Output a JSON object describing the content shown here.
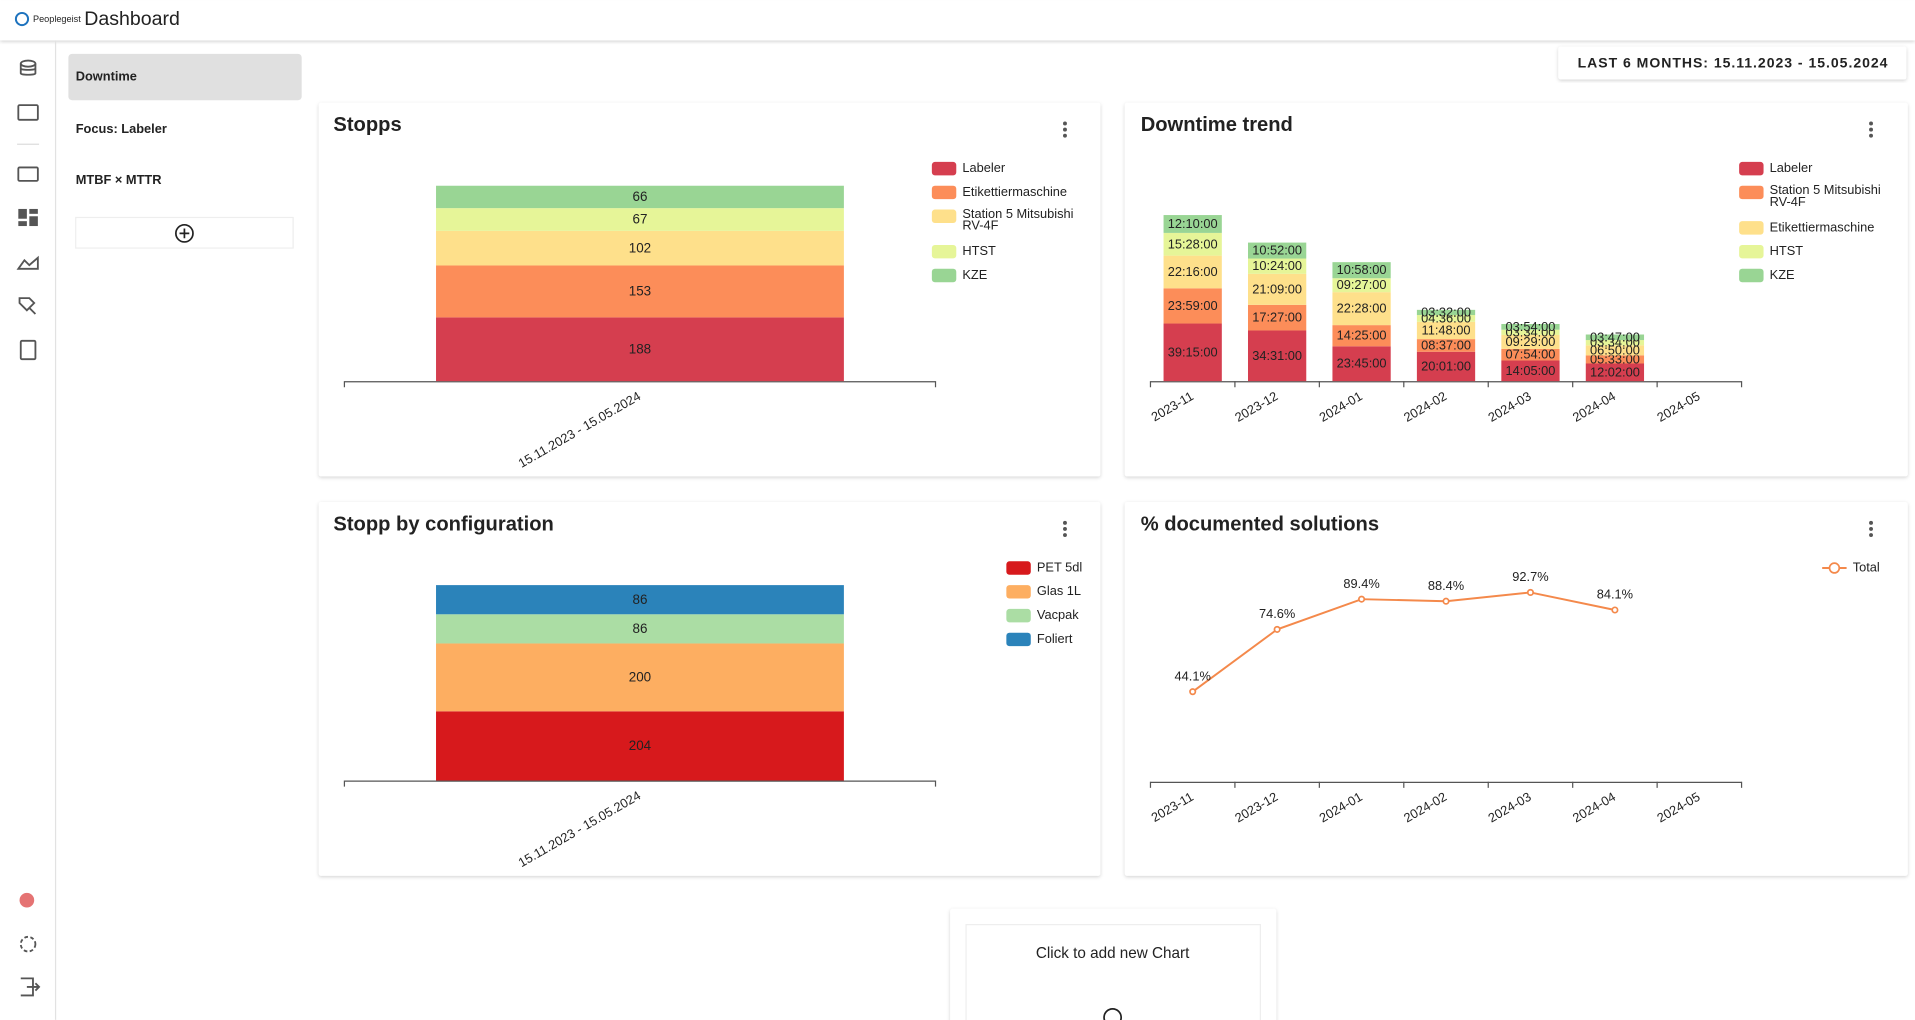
{
  "header": {
    "logo": "Peoplegeist",
    "title": "Dashboard"
  },
  "tabs": [
    "Downtime",
    "Focus: Labeler",
    "MTBF × MTTR"
  ],
  "date_range": "LAST 6 MONTHS: 15.11.2023 - 15.05.2024",
  "add_chart": "Click to add new Chart",
  "chart_data": [
    {
      "type": "bar",
      "stacked": true,
      "title": "Stopps",
      "categories": [
        "15.11.2023 - 15.05.2024"
      ],
      "series": [
        {
          "name": "Labeler",
          "color": "#d53e4f",
          "values": [
            188
          ]
        },
        {
          "name": "Etikettiermaschine",
          "color": "#fc8d59",
          "values": [
            153
          ]
        },
        {
          "name": "Station 5 Mitsubishi RV-4F",
          "color": "#fee08b",
          "values": [
            102
          ]
        },
        {
          "name": "HTST",
          "color": "#e6f598",
          "values": [
            67
          ]
        },
        {
          "name": "KZE",
          "color": "#99d594",
          "values": [
            66
          ]
        }
      ]
    },
    {
      "type": "bar",
      "stacked": true,
      "title": "Downtime trend",
      "categories": [
        "2023-11",
        "2023-12",
        "2024-01",
        "2024-02",
        "2024-03",
        "2024-04",
        "2024-05"
      ],
      "series": [
        {
          "name": "Labeler",
          "color": "#d53e4f",
          "values": [
            2355,
            2071,
            1425,
            1201,
            845,
            722,
            null
          ],
          "value_labels": [
            "39:15:00",
            "34:31:00",
            "23:45:00",
            "20:01:00",
            "14:05:00",
            "12:02:00",
            null
          ]
        },
        {
          "name": "Station 5 Mitsubishi RV-4F",
          "color": "#fc8d59",
          "values": [
            1439,
            1047,
            865,
            517,
            474,
            333,
            null
          ],
          "value_labels": [
            "23:59:00",
            "17:27:00",
            "14:25:00",
            "08:37:00",
            "07:54:00",
            "05:33:00",
            null
          ]
        },
        {
          "name": "Etikettiermaschine",
          "color": "#fee08b",
          "values": [
            1336,
            1269,
            1348,
            708,
            569,
            410,
            null
          ],
          "value_labels": [
            "22:16:00",
            "21:09:00",
            "22:28:00",
            "11:48:00",
            "09:29:00",
            "06:50:00",
            null
          ]
        },
        {
          "name": "HTST",
          "color": "#e6f598",
          "values": [
            928,
            624,
            567,
            276,
            214,
            214,
            null
          ],
          "value_labels": [
            "15:28:00",
            "10:24:00",
            "09:27:00",
            "04:36:00",
            "03:34:00",
            "03:34:00",
            null
          ]
        },
        {
          "name": "KZE",
          "color": "#99d594",
          "values": [
            730,
            652,
            658,
            212,
            234,
            227,
            null
          ],
          "value_labels": [
            "12:10:00",
            "10:52:00",
            "10:58:00",
            "03:32:00",
            "03:54:00",
            "03:47:00",
            null
          ]
        }
      ]
    },
    {
      "type": "bar",
      "stacked": true,
      "title": "Stopp by configuration",
      "categories": [
        "15.11.2023 - 15.05.2024"
      ],
      "series": [
        {
          "name": "PET 5dl",
          "color": "#d7191c",
          "values": [
            204
          ]
        },
        {
          "name": "Glas 1L",
          "color": "#fdae61",
          "values": [
            200
          ]
        },
        {
          "name": "Vacpak",
          "color": "#abdda4",
          "values": [
            86
          ]
        },
        {
          "name": "Foliert",
          "color": "#2b83ba",
          "values": [
            86
          ]
        }
      ]
    },
    {
      "type": "line",
      "title": "% documented solutions",
      "categories": [
        "2023-11",
        "2023-12",
        "2024-01",
        "2024-02",
        "2024-03",
        "2024-04",
        "2024-05"
      ],
      "series": [
        {
          "name": "Total",
          "color": "#f4894b",
          "values": [
            44.1,
            74.6,
            89.4,
            88.4,
            92.7,
            84.1,
            null
          ],
          "value_labels": [
            "44.1%",
            "74.6%",
            "89.4%",
            "88.4%",
            "92.7%",
            "84.1%",
            null
          ]
        }
      ]
    }
  ]
}
